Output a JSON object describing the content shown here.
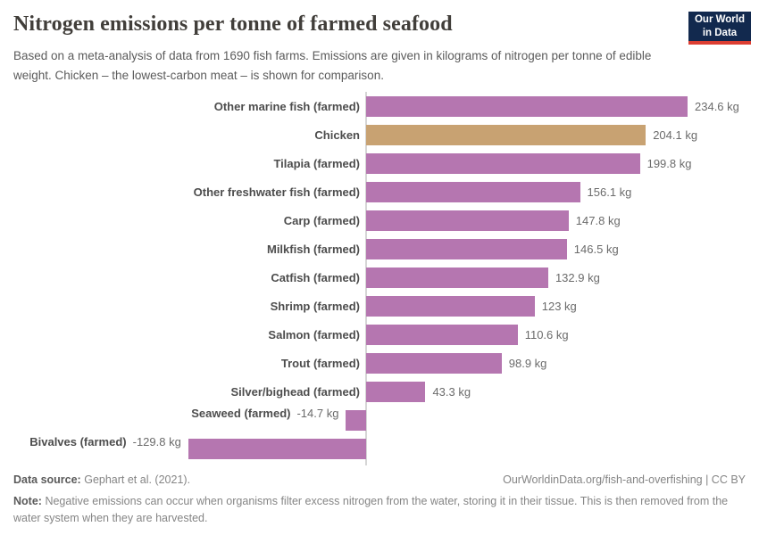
{
  "header": {
    "title": "Nitrogen emissions per tonne of farmed seafood",
    "subtitle": "Based on a meta-analysis of data from 1690 fish farms. Emissions are given in kilograms of nitrogen per tonne of edible weight. Chicken – the lowest-carbon meat – is shown for comparison.",
    "logo": {
      "line1": "Our World",
      "line2": "in Data",
      "bg_color": "#12294e",
      "accent_color": "#dc3e32"
    }
  },
  "chart_data": {
    "type": "bar",
    "orientation": "horizontal",
    "title": "Nitrogen emissions per tonne of farmed seafood",
    "unit": "kg of nitrogen per tonne of edible weight",
    "xlim": [
      -129.8,
      234.6
    ],
    "grid": false,
    "legend": "none",
    "default_color": "#b576b0",
    "highlight_color": "#c8a272",
    "categories": [
      "Other marine fish (farmed)",
      "Chicken",
      "Tilapia (farmed)",
      "Other freshwater fish (farmed)",
      "Carp (farmed)",
      "Milkfish (farmed)",
      "Catfish (farmed)",
      "Shrimp (farmed)",
      "Salmon (farmed)",
      "Trout (farmed)",
      "Silver/bighead (farmed)",
      "Seaweed (farmed)",
      "Bivalves (farmed)"
    ],
    "values": [
      234.6,
      204.1,
      199.8,
      156.1,
      147.8,
      146.5,
      132.9,
      123,
      110.6,
      98.9,
      43.3,
      -14.7,
      -129.8
    ],
    "value_labels": [
      "234.6 kg",
      "204.1 kg",
      "199.8 kg",
      "156.1 kg",
      "147.8 kg",
      "146.5 kg",
      "132.9 kg",
      "123 kg",
      "110.6 kg",
      "98.9 kg",
      "43.3 kg",
      "-14.7 kg",
      "-129.8 kg"
    ],
    "colors": [
      "#b576b0",
      "#c8a272",
      "#b576b0",
      "#b576b0",
      "#b576b0",
      "#b576b0",
      "#b576b0",
      "#b576b0",
      "#b576b0",
      "#b576b0",
      "#b576b0",
      "#b576b0",
      "#b576b0"
    ]
  },
  "footer": {
    "source_label": "Data source:",
    "source_text": "Gephart et al. (2021).",
    "credit": "OurWorldinData.org/fish-and-overfishing | CC BY",
    "note_label": "Note:",
    "note_text": "Negative emissions can occur when organisms filter excess nitrogen from the water, storing it in their tissue. This is then removed from the water system when they are harvested."
  }
}
